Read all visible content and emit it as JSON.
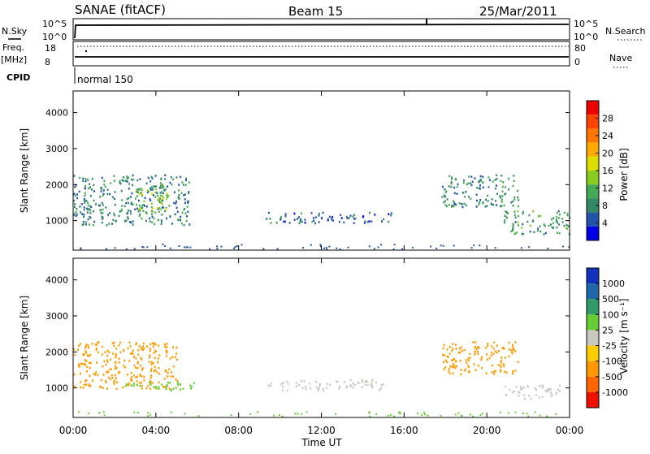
{
  "header": {
    "station": "SANAE (fitACF)",
    "beam": "Beam 15",
    "date": "25/Mar/2011"
  },
  "top_panels": {
    "nsky_label": "N.Sky",
    "nsky_top_left": "10^5",
    "nsky_bottom_left": "10^0",
    "nsky_top_right": "10^5",
    "nsky_bottom_right": "10^0",
    "nsearch_label": "N.Search",
    "freq_label": "Freq.",
    "freq_unit": "[MHz]",
    "freq_top": "18",
    "freq_bottom": "8",
    "nave_top": "80",
    "nave_bottom": "0",
    "nave_label": "Nave",
    "cpid_label": "CPID",
    "cpid_value": "normal 150"
  },
  "panels": {
    "power": {
      "ylabel": "Slant Range [km]",
      "yticks": [
        "4000",
        "3000",
        "2000",
        "1000"
      ],
      "colorbar_label": "Power [dB]",
      "colorbar_ticks": [
        "28",
        "24",
        "20",
        "16",
        "12",
        "8",
        "4"
      ],
      "colors": [
        "#0000e6",
        "#2255aa",
        "#338866",
        "#44aa55",
        "#88cc22",
        "#dddd00",
        "#ffaa00",
        "#ff7700",
        "#ff4400",
        "#ee0000"
      ]
    },
    "velocity": {
      "ylabel": "Slant Range [km]",
      "yticks": [
        "4000",
        "3000",
        "2000",
        "1000"
      ],
      "colorbar_label": "Velocity [m s⁻¹]",
      "colorbar_ticks": [
        "1000",
        "500",
        "100",
        "25",
        "-25",
        "-100",
        "-500",
        "-1000"
      ],
      "colors": [
        "#1133bb",
        "#2266aa",
        "#339966",
        "#66cc33",
        "#c8c8c0",
        "#ffcc00",
        "#ff9900",
        "#ff6600",
        "#ee1100"
      ]
    }
  },
  "xaxis": {
    "ticks": [
      "00:00",
      "04:00",
      "08:00",
      "12:00",
      "16:00",
      "20:00",
      "00:00"
    ],
    "label": "Time UT"
  },
  "chart_data": [
    {
      "type": "heatmap",
      "title": "Power",
      "xlabel": "Time UT",
      "ylabel": "Slant Range [km]",
      "xlim": [
        0,
        24
      ],
      "ylim": [
        180,
        4600
      ],
      "colorbar": {
        "label": "Power [dB]",
        "range": [
          0,
          32
        ]
      },
      "regions": [
        {
          "t0": 0.0,
          "t1": 5.6,
          "r0": 900,
          "r1": 2300,
          "value": 8
        },
        {
          "t0": 3.0,
          "t1": 4.6,
          "r0": 1200,
          "r1": 2000,
          "value": 14
        },
        {
          "t0": 9.3,
          "t1": 15.4,
          "r0": 950,
          "r1": 1250,
          "value": 6
        },
        {
          "t0": 17.8,
          "t1": 21.5,
          "r0": 1400,
          "r1": 2300,
          "value": 8
        },
        {
          "t0": 20.8,
          "t1": 24.0,
          "r0": 650,
          "r1": 1300,
          "value": 10
        }
      ]
    },
    {
      "type": "heatmap",
      "title": "Velocity",
      "xlabel": "Time UT",
      "ylabel": "Slant Range [km]",
      "xlim": [
        0,
        24
      ],
      "ylim": [
        180,
        4600
      ],
      "colorbar": {
        "label": "Velocity [m s⁻¹]",
        "range": [
          -1000,
          1000
        ]
      },
      "regions": [
        {
          "t0": 0.0,
          "t1": 5.0,
          "r0": 1000,
          "r1": 2300,
          "value": -300
        },
        {
          "t0": 2.5,
          "t1": 6.0,
          "r0": 950,
          "r1": 1200,
          "value": 40
        },
        {
          "t0": 9.3,
          "t1": 15.4,
          "r0": 950,
          "r1": 1250,
          "value": 0
        },
        {
          "t0": 17.8,
          "t1": 21.5,
          "r0": 1400,
          "r1": 2300,
          "value": -150
        },
        {
          "t0": 20.8,
          "t1": 23.5,
          "r0": 700,
          "r1": 1100,
          "value": 0
        }
      ]
    }
  ]
}
